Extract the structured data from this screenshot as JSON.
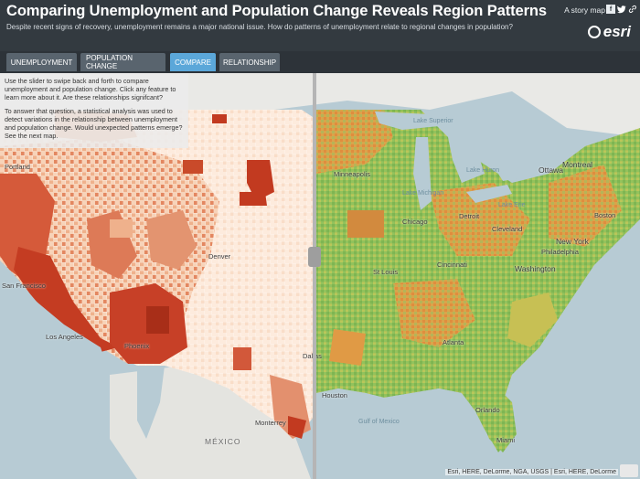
{
  "header": {
    "title": "Comparing Unemployment and Population Change Reveals Region Patterns",
    "subtitle": "Despite recent signs of recovery, unemployment remains a major national issue. How do patterns of unemployment relate to regional changes in population?",
    "story_map_label": "A story map",
    "logo_text": "esri"
  },
  "tabs": [
    {
      "label": "UNEMPLOYMENT",
      "active": false
    },
    {
      "label": "POPULATION CHANGE",
      "active": false
    },
    {
      "label": "COMPARE",
      "active": true
    },
    {
      "label": "RELATIONSHIP",
      "active": false
    }
  ],
  "info_panel": {
    "p1": "Use the slider to swipe back and forth to compare unemployment and population change. Click any feature to learn more about it. Are these relationships signifcant?",
    "p2": "To answer that question, a statistical analysis was used to detect variations in the relationship between unemployment and population change. Would unexpected patterns emerge? See the next map."
  },
  "map_labels": {
    "portland": "Portland",
    "san_francisco": "San Francisco",
    "los_angeles": "Los Angeles",
    "phoenix": "Phoenix",
    "denver": "Denver",
    "dallas": "Dallas",
    "houston": "Houston",
    "monterrey": "Monterrey",
    "mexico": "MÉXICO",
    "minneapolis": "Minneapolis",
    "chicago": "Chicago",
    "detroit": "Detroit",
    "cleveland": "Cleveland",
    "st_louis": "St Louis",
    "cincinnati": "Cincinnati",
    "washington": "Washington",
    "philadelphia": "Philadelphia",
    "new_york": "New York",
    "boston": "Boston",
    "ottawa": "Ottawa",
    "montreal": "Montreal",
    "atlanta": "Atlanta",
    "orlando": "Orlando",
    "miami": "Miami",
    "gulf_of_mexico": "Gulf of Mexico",
    "lake_superior": "Lake Superior",
    "lake_huron": "Lake Huron",
    "lake_michigan": "Lake Michigan",
    "lake_erie": "Lake Erie"
  },
  "attribution": "Esri, HERE, DeLorme, NGA, USGS | Esri, HERE, DeLorme",
  "colors": {
    "header_bg": "#333a40",
    "tab_bg": "#59646e",
    "tab_active": "#5ba7d9",
    "water": "#b7cbd4",
    "pop_high": "#c0391e",
    "pop_low": "#fbe6d6",
    "unemp_green": "#8fc05a",
    "unemp_orange": "#e09a45"
  }
}
